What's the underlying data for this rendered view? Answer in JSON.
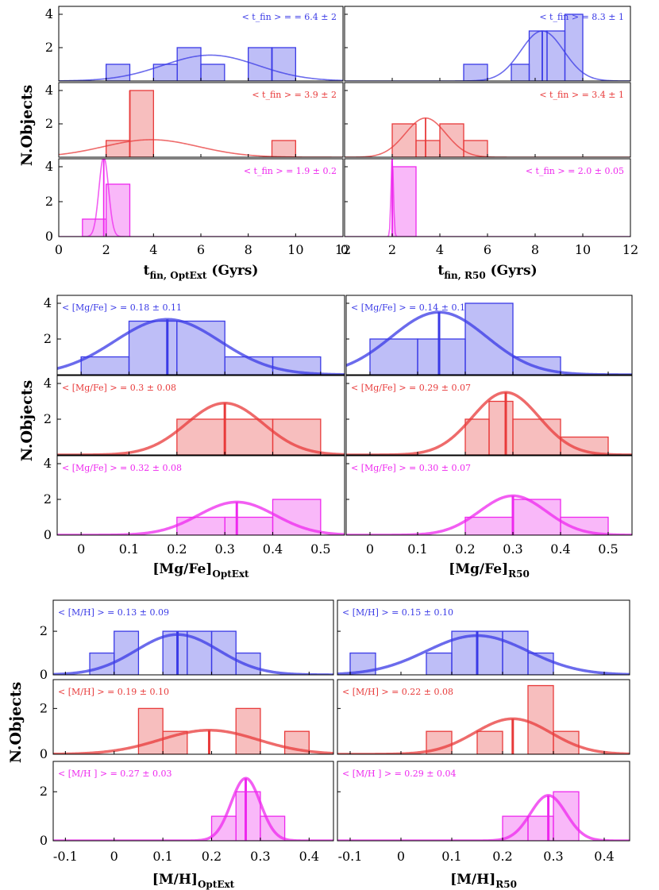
{
  "figure": {
    "colors": {
      "blue": "#3a3ae6",
      "red": "#e83a3a",
      "magenta": "#ee28ee"
    },
    "blocks": [
      {
        "ylabel": "N.Objects",
        "xlim": [
          0,
          12
        ],
        "xticks": [
          "0",
          "2",
          "4",
          "6",
          "8",
          "10",
          "12"
        ],
        "xtick_values": [
          0,
          2,
          4,
          6,
          8,
          10,
          12
        ],
        "xlabel_left": "t",
        "xlabel_left_sub": "fin, OptExt",
        "xlabel_left_tail": " (Gyrs)",
        "xlabel_right": "t",
        "xlabel_right_sub": "fin, R50",
        "xlabel_right_tail": " (Gyrs)",
        "curve_width": 1.6,
        "ann_pos": "right"
      },
      {
        "ylabel": "N.Objects",
        "xlim": [
          -0.05,
          0.55
        ],
        "xticks": [
          "0",
          "0.1",
          "0.2",
          "0.3",
          "0.4",
          "0.5"
        ],
        "xtick_values": [
          0,
          0.1,
          0.2,
          0.3,
          0.4,
          0.5
        ],
        "xlabel_left": "[Mg/Fe]",
        "xlabel_left_sub": "OptExt",
        "xlabel_left_tail": "",
        "xlabel_right": "[Mg/Fe]",
        "xlabel_right_sub": "R50",
        "xlabel_right_tail": "",
        "curve_width": 3.5,
        "ann_pos": "left"
      },
      {
        "ylabel": "N.Objects",
        "xlim": [
          -0.125,
          0.45
        ],
        "xticks": [
          "-0.1",
          "0",
          "0.1",
          "0.2",
          "0.3",
          "0.4"
        ],
        "xtick_values": [
          -0.1,
          0,
          0.1,
          0.2,
          0.3,
          0.4
        ],
        "xlabel_left": "[M/H]",
        "xlabel_left_sub": "OptExt",
        "xlabel_left_tail": "",
        "xlabel_right": "[M/H]",
        "xlabel_right_sub": "R50",
        "xlabel_right_tail": "",
        "curve_width": 3.5,
        "ann_pos": "left"
      }
    ]
  },
  "chart_data": [
    {
      "type": "bar",
      "variable": "t_fin (Gyrs)",
      "panels": [
        {
          "column": "OptExt",
          "color": "blue",
          "ylim": [
            0,
            4.5
          ],
          "yticks": [
            "2",
            "4"
          ],
          "annotation": "< t_fin > = = 6.4 ± 2",
          "bins": [
            [
              2,
              3,
              1
            ],
            [
              3,
              4,
              0
            ],
            [
              4,
              5,
              1
            ],
            [
              5,
              6,
              2
            ],
            [
              6,
              7,
              1
            ],
            [
              7,
              8,
              0
            ],
            [
              8,
              9,
              2
            ],
            [
              9,
              10,
              2
            ]
          ],
          "mean": 6.4,
          "sigma": 2.0,
          "peak": 1.55,
          "vline": 9.0
        },
        {
          "column": "R50",
          "color": "blue",
          "ylim": [
            0,
            4.5
          ],
          "yticks": [
            "2",
            "4"
          ],
          "annotation": "< t_fin > = 8.3 ± 1",
          "bins": [
            [
              5,
              6,
              1
            ],
            [
              6,
              7,
              0
            ],
            [
              7,
              7.75,
              1
            ],
            [
              7.75,
              8.5,
              3
            ],
            [
              8.5,
              9.25,
              3
            ],
            [
              9.25,
              10,
              4
            ]
          ],
          "mean": 8.3,
          "sigma": 0.9,
          "peak": 3.0,
          "vline": 8.3
        },
        {
          "column": "OptExt",
          "color": "red",
          "ylim": [
            0,
            4.5
          ],
          "yticks": [
            "2",
            "4"
          ],
          "annotation": "< t_fin > = 3.9 ± 2",
          "bins": [
            [
              2,
              3,
              1
            ],
            [
              3,
              4,
              4
            ],
            [
              9,
              10,
              1
            ]
          ],
          "mean": 3.9,
          "sigma": 2.0,
          "peak": 1.05,
          "vline": 3.0
        },
        {
          "column": "R50",
          "color": "red",
          "ylim": [
            0,
            4.5
          ],
          "yticks": [
            "2",
            "4"
          ],
          "annotation": "< t_fin > = 3.4 ± 1",
          "bins": [
            [
              2,
              3,
              2
            ],
            [
              3,
              4,
              1
            ],
            [
              4,
              5,
              2
            ],
            [
              5,
              6,
              1
            ]
          ],
          "mean": 3.4,
          "sigma": 0.85,
          "peak": 2.35,
          "vline": 3.4
        },
        {
          "column": "OptExt",
          "color": "magenta",
          "ylim": [
            0,
            4.5
          ],
          "yticks": [
            "0",
            "2",
            "4"
          ],
          "annotation": "< t_fin > = 1.9 ± 0.2",
          "bins": [
            [
              1,
              2,
              1
            ],
            [
              2,
              3,
              3
            ]
          ],
          "mean": 1.9,
          "sigma": 0.2,
          "peak": 4.6,
          "vline": 1.9
        },
        {
          "column": "R50",
          "color": "magenta",
          "ylim": [
            0,
            4.5
          ],
          "yticks": [
            "0",
            "2",
            "4"
          ],
          "annotation": "< t_fin > = 2.0 ± 0.05",
          "bins": [
            [
              2,
              3,
              4
            ]
          ],
          "mean": 2.0,
          "sigma": 0.05,
          "peak": 4.6,
          "vline": 2.0
        }
      ]
    },
    {
      "type": "bar",
      "variable": "[Mg/Fe]",
      "panels": [
        {
          "column": "OptExt",
          "color": "blue",
          "ylim": [
            0,
            4.1
          ],
          "yticks": [
            "2",
            "4"
          ],
          "annotation": "< [Mg/Fe] > = 0.18 ± 0.11",
          "bins": [
            [
              0,
              0.1,
              1
            ],
            [
              0.1,
              0.2,
              3
            ],
            [
              0.2,
              0.3,
              3
            ],
            [
              0.3,
              0.4,
              1
            ],
            [
              0.4,
              0.5,
              1
            ]
          ],
          "mean": 0.18,
          "sigma": 0.11,
          "peak": 3.1,
          "vline": 0.18
        },
        {
          "column": "R50",
          "color": "blue",
          "ylim": [
            0,
            4.1
          ],
          "yticks": [
            "2",
            "4"
          ],
          "annotation": "< [Mg/Fe] > = 0.14 ± 0.1",
          "bins": [
            [
              0,
              0.1,
              2
            ],
            [
              0.1,
              0.2,
              2
            ],
            [
              0.2,
              0.3,
              4
            ],
            [
              0.3,
              0.4,
              1
            ]
          ],
          "mean": 0.145,
          "sigma": 0.1,
          "peak": 3.5,
          "vline": 0.145
        },
        {
          "column": "OptExt",
          "color": "red",
          "ylim": [
            0,
            4.1
          ],
          "yticks": [
            "2",
            "4"
          ],
          "annotation": "< [Mg/Fe] > = 0.3 ± 0.08",
          "bins": [
            [
              0.2,
              0.3,
              2
            ],
            [
              0.3,
              0.4,
              2
            ],
            [
              0.4,
              0.5,
              2
            ]
          ],
          "mean": 0.3,
          "sigma": 0.08,
          "peak": 2.9,
          "vline": 0.3
        },
        {
          "column": "R50",
          "color": "red",
          "ylim": [
            0,
            4.1
          ],
          "yticks": [
            "2",
            "4"
          ],
          "annotation": "< [Mg/Fe] > = 0.29 ± 0.07",
          "bins": [
            [
              0.2,
              0.25,
              2
            ],
            [
              0.25,
              0.3,
              3
            ],
            [
              0.3,
              0.4,
              2
            ],
            [
              0.4,
              0.5,
              1
            ]
          ],
          "mean": 0.285,
          "sigma": 0.07,
          "peak": 3.5,
          "vline": 0.285
        },
        {
          "column": "OptExt",
          "color": "magenta",
          "ylim": [
            0,
            4.1
          ],
          "yticks": [
            "0",
            "2",
            "4"
          ],
          "annotation": "< [Mg/Fe] > = 0.32 ± 0.08",
          "bins": [
            [
              0.2,
              0.3,
              1
            ],
            [
              0.3,
              0.4,
              1
            ],
            [
              0.4,
              0.5,
              2
            ]
          ],
          "mean": 0.325,
          "sigma": 0.08,
          "peak": 1.85,
          "vline": 0.325
        },
        {
          "column": "R50",
          "color": "magenta",
          "ylim": [
            0,
            4.1
          ],
          "yticks": [
            "0",
            "2",
            "4"
          ],
          "annotation": "< [Mg/Fe] > = 0.30 ± 0.07",
          "bins": [
            [
              0.2,
              0.3,
              1
            ],
            [
              0.3,
              0.4,
              2
            ],
            [
              0.4,
              0.5,
              1
            ]
          ],
          "mean": 0.3,
          "sigma": 0.07,
          "peak": 2.2,
          "vline": 0.3
        }
      ]
    },
    {
      "type": "bar",
      "variable": "[M/H]",
      "panels": [
        {
          "column": "OptExt",
          "color": "blue",
          "ylim": [
            0,
            2.9
          ],
          "yticks": [
            "0",
            "2"
          ],
          "annotation": "< [M/H] > = 0.13 ± 0.09",
          "bins": [
            [
              -0.05,
              0,
              1
            ],
            [
              0,
              0.05,
              2
            ],
            [
              0.1,
              0.15,
              2
            ],
            [
              0.15,
              0.2,
              2
            ],
            [
              0.2,
              0.25,
              2
            ],
            [
              0.25,
              0.3,
              1
            ]
          ],
          "mean": 0.13,
          "sigma": 0.085,
          "peak": 1.85,
          "vline": 0.13
        },
        {
          "column": "R50",
          "color": "blue",
          "ylim": [
            0,
            2.9
          ],
          "yticks": [
            "0",
            "2"
          ],
          "annotation": "< [M/H] > = 0.15 ± 0.10",
          "bins": [
            [
              -0.1,
              -0.05,
              1
            ],
            [
              0.05,
              0.1,
              1
            ],
            [
              0.1,
              0.15,
              2
            ],
            [
              0.15,
              0.2,
              2
            ],
            [
              0.2,
              0.25,
              2
            ],
            [
              0.25,
              0.3,
              1
            ]
          ],
          "mean": 0.15,
          "sigma": 0.1,
          "peak": 1.8,
          "vline": 0.15
        },
        {
          "column": "OptExt",
          "color": "red",
          "ylim": [
            0,
            2.9
          ],
          "yticks": [
            "0",
            "2"
          ],
          "annotation": "< [M/H] > = 0.19 ± 0.10",
          "bins": [
            [
              0.05,
              0.1,
              2
            ],
            [
              0.1,
              0.15,
              1
            ],
            [
              0.25,
              0.3,
              2
            ],
            [
              0.35,
              0.4,
              1
            ]
          ],
          "mean": 0.195,
          "sigma": 0.1,
          "peak": 1.05,
          "vline": 0.195
        },
        {
          "column": "R50",
          "color": "red",
          "ylim": [
            0,
            2.9
          ],
          "yticks": [
            "0",
            "2"
          ],
          "annotation": "< [M/H] > = 0.22 ± 0.08",
          "bins": [
            [
              0.05,
              0.1,
              1
            ],
            [
              0.15,
              0.2,
              1
            ],
            [
              0.25,
              0.3,
              3
            ],
            [
              0.3,
              0.35,
              1
            ]
          ],
          "mean": 0.22,
          "sigma": 0.075,
          "peak": 1.55,
          "vline": 0.22
        },
        {
          "column": "OptExt",
          "color": "magenta",
          "ylim": [
            0,
            2.9
          ],
          "yticks": [
            "0",
            "2"
          ],
          "annotation": "< [M/H ] > = 0.27 ± 0.03",
          "bins": [
            [
              0.2,
              0.25,
              1
            ],
            [
              0.25,
              0.3,
              2
            ],
            [
              0.3,
              0.35,
              1
            ]
          ],
          "mean": 0.27,
          "sigma": 0.03,
          "peak": 2.55,
          "vline": 0.27
        },
        {
          "column": "R50",
          "color": "magenta",
          "ylim": [
            0,
            2.9
          ],
          "yticks": [
            "0",
            "2"
          ],
          "annotation": "< [M/H ] > = 0.29 ± 0.04",
          "bins": [
            [
              0.2,
              0.25,
              1
            ],
            [
              0.25,
              0.3,
              1
            ],
            [
              0.3,
              0.35,
              2
            ]
          ],
          "mean": 0.29,
          "sigma": 0.035,
          "peak": 1.85,
          "vline": 0.29
        }
      ]
    }
  ]
}
